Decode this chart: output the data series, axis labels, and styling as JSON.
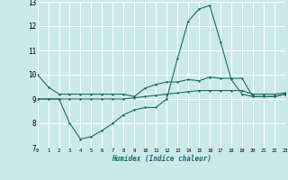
{
  "xlabel": "Humidex (Indice chaleur)",
  "xlim": [
    0,
    23
  ],
  "ylim": [
    7,
    13
  ],
  "yticks": [
    7,
    8,
    9,
    10,
    11,
    12,
    13
  ],
  "xticks": [
    0,
    1,
    2,
    3,
    4,
    5,
    6,
    7,
    8,
    9,
    10,
    11,
    12,
    13,
    14,
    15,
    16,
    17,
    18,
    19,
    20,
    21,
    22,
    23
  ],
  "bg_color": "#cce9e9",
  "grid_color": "#ffffff",
  "line_color": "#1a6b6b",
  "line1_x": [
    0,
    1,
    2,
    3,
    4,
    5,
    6,
    7,
    8,
    9,
    10,
    11,
    12,
    13,
    14,
    15,
    16,
    17,
    18,
    19,
    20,
    21,
    22,
    23
  ],
  "line1_y": [
    10.0,
    9.5,
    9.2,
    9.2,
    9.2,
    9.2,
    9.2,
    9.2,
    9.2,
    9.1,
    9.45,
    9.6,
    9.7,
    9.7,
    9.8,
    9.75,
    9.9,
    9.85,
    9.85,
    9.85,
    9.1,
    9.1,
    9.1,
    9.2
  ],
  "line2_x": [
    0,
    1,
    2,
    3,
    4,
    5,
    6,
    7,
    8,
    9,
    10,
    11,
    12,
    13,
    14,
    15,
    16,
    17,
    18,
    19,
    20,
    21,
    22,
    23
  ],
  "line2_y": [
    9.0,
    9.0,
    9.0,
    8.0,
    7.35,
    7.45,
    7.7,
    8.0,
    8.35,
    8.55,
    8.65,
    8.65,
    9.0,
    10.65,
    12.2,
    12.7,
    12.85,
    11.35,
    9.8,
    9.2,
    9.1,
    9.1,
    9.1,
    9.2
  ],
  "line3_x": [
    0,
    1,
    2,
    3,
    4,
    5,
    6,
    7,
    8,
    9,
    10,
    11,
    12,
    13,
    14,
    15,
    16,
    17,
    18,
    19,
    20,
    21,
    22,
    23
  ],
  "line3_y": [
    9.0,
    9.0,
    9.0,
    9.0,
    9.0,
    9.0,
    9.0,
    9.0,
    9.0,
    9.05,
    9.1,
    9.15,
    9.2,
    9.25,
    9.3,
    9.35,
    9.35,
    9.35,
    9.35,
    9.35,
    9.2,
    9.2,
    9.2,
    9.25
  ]
}
